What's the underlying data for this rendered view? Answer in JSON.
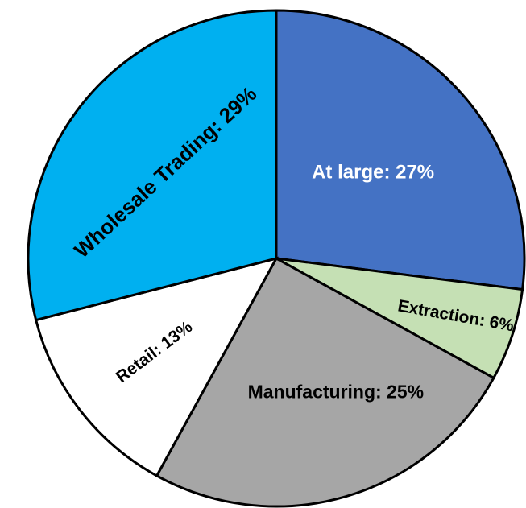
{
  "chart_data": {
    "type": "pie",
    "title": "",
    "slices": [
      {
        "label": "At large: 27%",
        "value": 27,
        "color": "#4472C4",
        "label_color": "#FFFFFF"
      },
      {
        "label": "Extraction: 6%",
        "value": 6,
        "color": "#C5E0B4",
        "label_color": "#000000"
      },
      {
        "label": "Manufacturing: 25%",
        "value": 25,
        "color": "#A6A6A6",
        "label_color": "#000000"
      },
      {
        "label": "Retail: 13%",
        "value": 13,
        "color": "#FFFFFF",
        "label_color": "#000000"
      },
      {
        "label": "Wholesale Trading: 29%",
        "value": 29,
        "color": "#00B0F0",
        "label_color": "#000000"
      }
    ],
    "start_angle": "12 o'clock",
    "direction": "clockwise",
    "legend": "none"
  }
}
